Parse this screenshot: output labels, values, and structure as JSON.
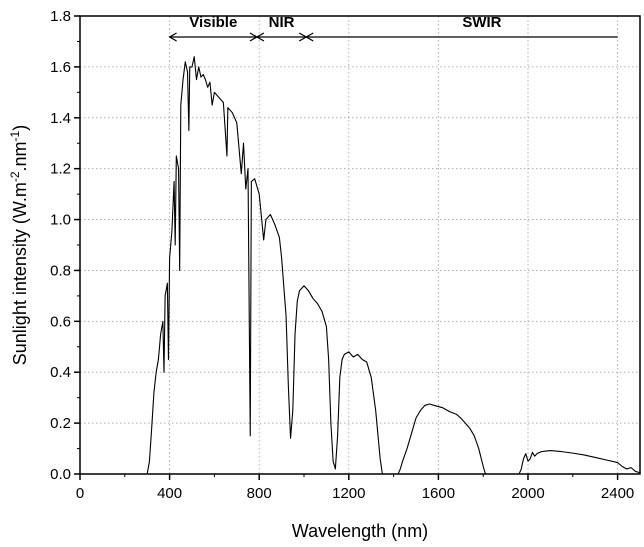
{
  "chart_data": {
    "type": "line",
    "xlabel": "Wavelength (nm)",
    "ylabel": {
      "base": "Sunlight intensity (W.m",
      "sup1": "-2",
      "mid": ".nm",
      "sup2": "-1",
      "end": ")"
    },
    "xlim": [
      0,
      2500
    ],
    "ylim": [
      0,
      1.8
    ],
    "x_ticks": [
      0,
      400,
      800,
      1200,
      1600,
      2000,
      2400
    ],
    "y_ticks": [
      0.0,
      0.2,
      0.4,
      0.6,
      0.8,
      1.0,
      1.2,
      1.4,
      1.6,
      1.8
    ],
    "x_tick_labels": [
      "0",
      "400",
      "800",
      "1200",
      "1600",
      "2000",
      "2400"
    ],
    "y_tick_labels": [
      "0.0",
      "0.2",
      "0.4",
      "0.6",
      "0.8",
      "1.0",
      "1.2",
      "1.4",
      "1.6",
      "1.8"
    ],
    "grid": true,
    "series": [
      {
        "color": "#000000",
        "points": [
          [
            280,
            0.0
          ],
          [
            300,
            0.0
          ],
          [
            310,
            0.05
          ],
          [
            320,
            0.18
          ],
          [
            330,
            0.32
          ],
          [
            340,
            0.4
          ],
          [
            350,
            0.45
          ],
          [
            360,
            0.55
          ],
          [
            370,
            0.6
          ],
          [
            375,
            0.4
          ],
          [
            380,
            0.7
          ],
          [
            390,
            0.75
          ],
          [
            395,
            0.45
          ],
          [
            400,
            0.85
          ],
          [
            410,
            0.95
          ],
          [
            420,
            1.15
          ],
          [
            425,
            0.9
          ],
          [
            430,
            1.25
          ],
          [
            440,
            1.2
          ],
          [
            445,
            0.8
          ],
          [
            450,
            1.45
          ],
          [
            460,
            1.55
          ],
          [
            470,
            1.62
          ],
          [
            480,
            1.58
          ],
          [
            486,
            1.35
          ],
          [
            490,
            1.6
          ],
          [
            500,
            1.6
          ],
          [
            510,
            1.64
          ],
          [
            520,
            1.55
          ],
          [
            530,
            1.6
          ],
          [
            540,
            1.56
          ],
          [
            550,
            1.57
          ],
          [
            560,
            1.55
          ],
          [
            570,
            1.52
          ],
          [
            580,
            1.54
          ],
          [
            590,
            1.45
          ],
          [
            600,
            1.5
          ],
          [
            620,
            1.48
          ],
          [
            640,
            1.46
          ],
          [
            656,
            1.25
          ],
          [
            660,
            1.44
          ],
          [
            680,
            1.42
          ],
          [
            700,
            1.38
          ],
          [
            720,
            1.18
          ],
          [
            730,
            1.3
          ],
          [
            740,
            1.12
          ],
          [
            750,
            1.2
          ],
          [
            760,
            0.15
          ],
          [
            765,
            1.15
          ],
          [
            780,
            1.16
          ],
          [
            800,
            1.1
          ],
          [
            820,
            0.92
          ],
          [
            830,
            1.0
          ],
          [
            850,
            1.02
          ],
          [
            870,
            0.98
          ],
          [
            890,
            0.93
          ],
          [
            900,
            0.85
          ],
          [
            920,
            0.62
          ],
          [
            930,
            0.35
          ],
          [
            940,
            0.14
          ],
          [
            950,
            0.25
          ],
          [
            960,
            0.55
          ],
          [
            970,
            0.68
          ],
          [
            980,
            0.72
          ],
          [
            1000,
            0.74
          ],
          [
            1020,
            0.72
          ],
          [
            1040,
            0.69
          ],
          [
            1060,
            0.67
          ],
          [
            1080,
            0.64
          ],
          [
            1100,
            0.58
          ],
          [
            1110,
            0.45
          ],
          [
            1120,
            0.2
          ],
          [
            1130,
            0.05
          ],
          [
            1140,
            0.02
          ],
          [
            1150,
            0.15
          ],
          [
            1160,
            0.38
          ],
          [
            1170,
            0.45
          ],
          [
            1180,
            0.47
          ],
          [
            1200,
            0.48
          ],
          [
            1220,
            0.46
          ],
          [
            1240,
            0.47
          ],
          [
            1260,
            0.45
          ],
          [
            1280,
            0.44
          ],
          [
            1300,
            0.38
          ],
          [
            1320,
            0.25
          ],
          [
            1340,
            0.06
          ],
          [
            1350,
            0.0
          ],
          [
            1420,
            0.0
          ],
          [
            1430,
            0.02
          ],
          [
            1440,
            0.05
          ],
          [
            1460,
            0.1
          ],
          [
            1480,
            0.16
          ],
          [
            1500,
            0.22
          ],
          [
            1520,
            0.25
          ],
          [
            1540,
            0.27
          ],
          [
            1560,
            0.275
          ],
          [
            1580,
            0.27
          ],
          [
            1600,
            0.265
          ],
          [
            1620,
            0.26
          ],
          [
            1650,
            0.245
          ],
          [
            1680,
            0.235
          ],
          [
            1700,
            0.22
          ],
          [
            1720,
            0.2
          ],
          [
            1740,
            0.18
          ],
          [
            1760,
            0.15
          ],
          [
            1780,
            0.1
          ],
          [
            1800,
            0.03
          ],
          [
            1810,
            0.0
          ],
          [
            1960,
            0.0
          ],
          [
            1970,
            0.02
          ],
          [
            1980,
            0.06
          ],
          [
            1990,
            0.08
          ],
          [
            2000,
            0.05
          ],
          [
            2010,
            0.06
          ],
          [
            2020,
            0.085
          ],
          [
            2030,
            0.07
          ],
          [
            2040,
            0.08
          ],
          [
            2060,
            0.088
          ],
          [
            2080,
            0.09
          ],
          [
            2100,
            0.092
          ],
          [
            2150,
            0.088
          ],
          [
            2200,
            0.082
          ],
          [
            2250,
            0.075
          ],
          [
            2300,
            0.065
          ],
          [
            2350,
            0.055
          ],
          [
            2400,
            0.045
          ],
          [
            2420,
            0.03
          ],
          [
            2440,
            0.02
          ],
          [
            2460,
            0.025
          ],
          [
            2480,
            0.01
          ],
          [
            2500,
            0.005
          ]
        ]
      }
    ],
    "annotations": [
      {
        "label": "Visible",
        "x_start": 400,
        "x_end": 790
      },
      {
        "label": "NIR",
        "x_start": 790,
        "x_end": 1010
      },
      {
        "label": "SWIR",
        "x_start": 1010,
        "x_end": 2400
      }
    ]
  }
}
